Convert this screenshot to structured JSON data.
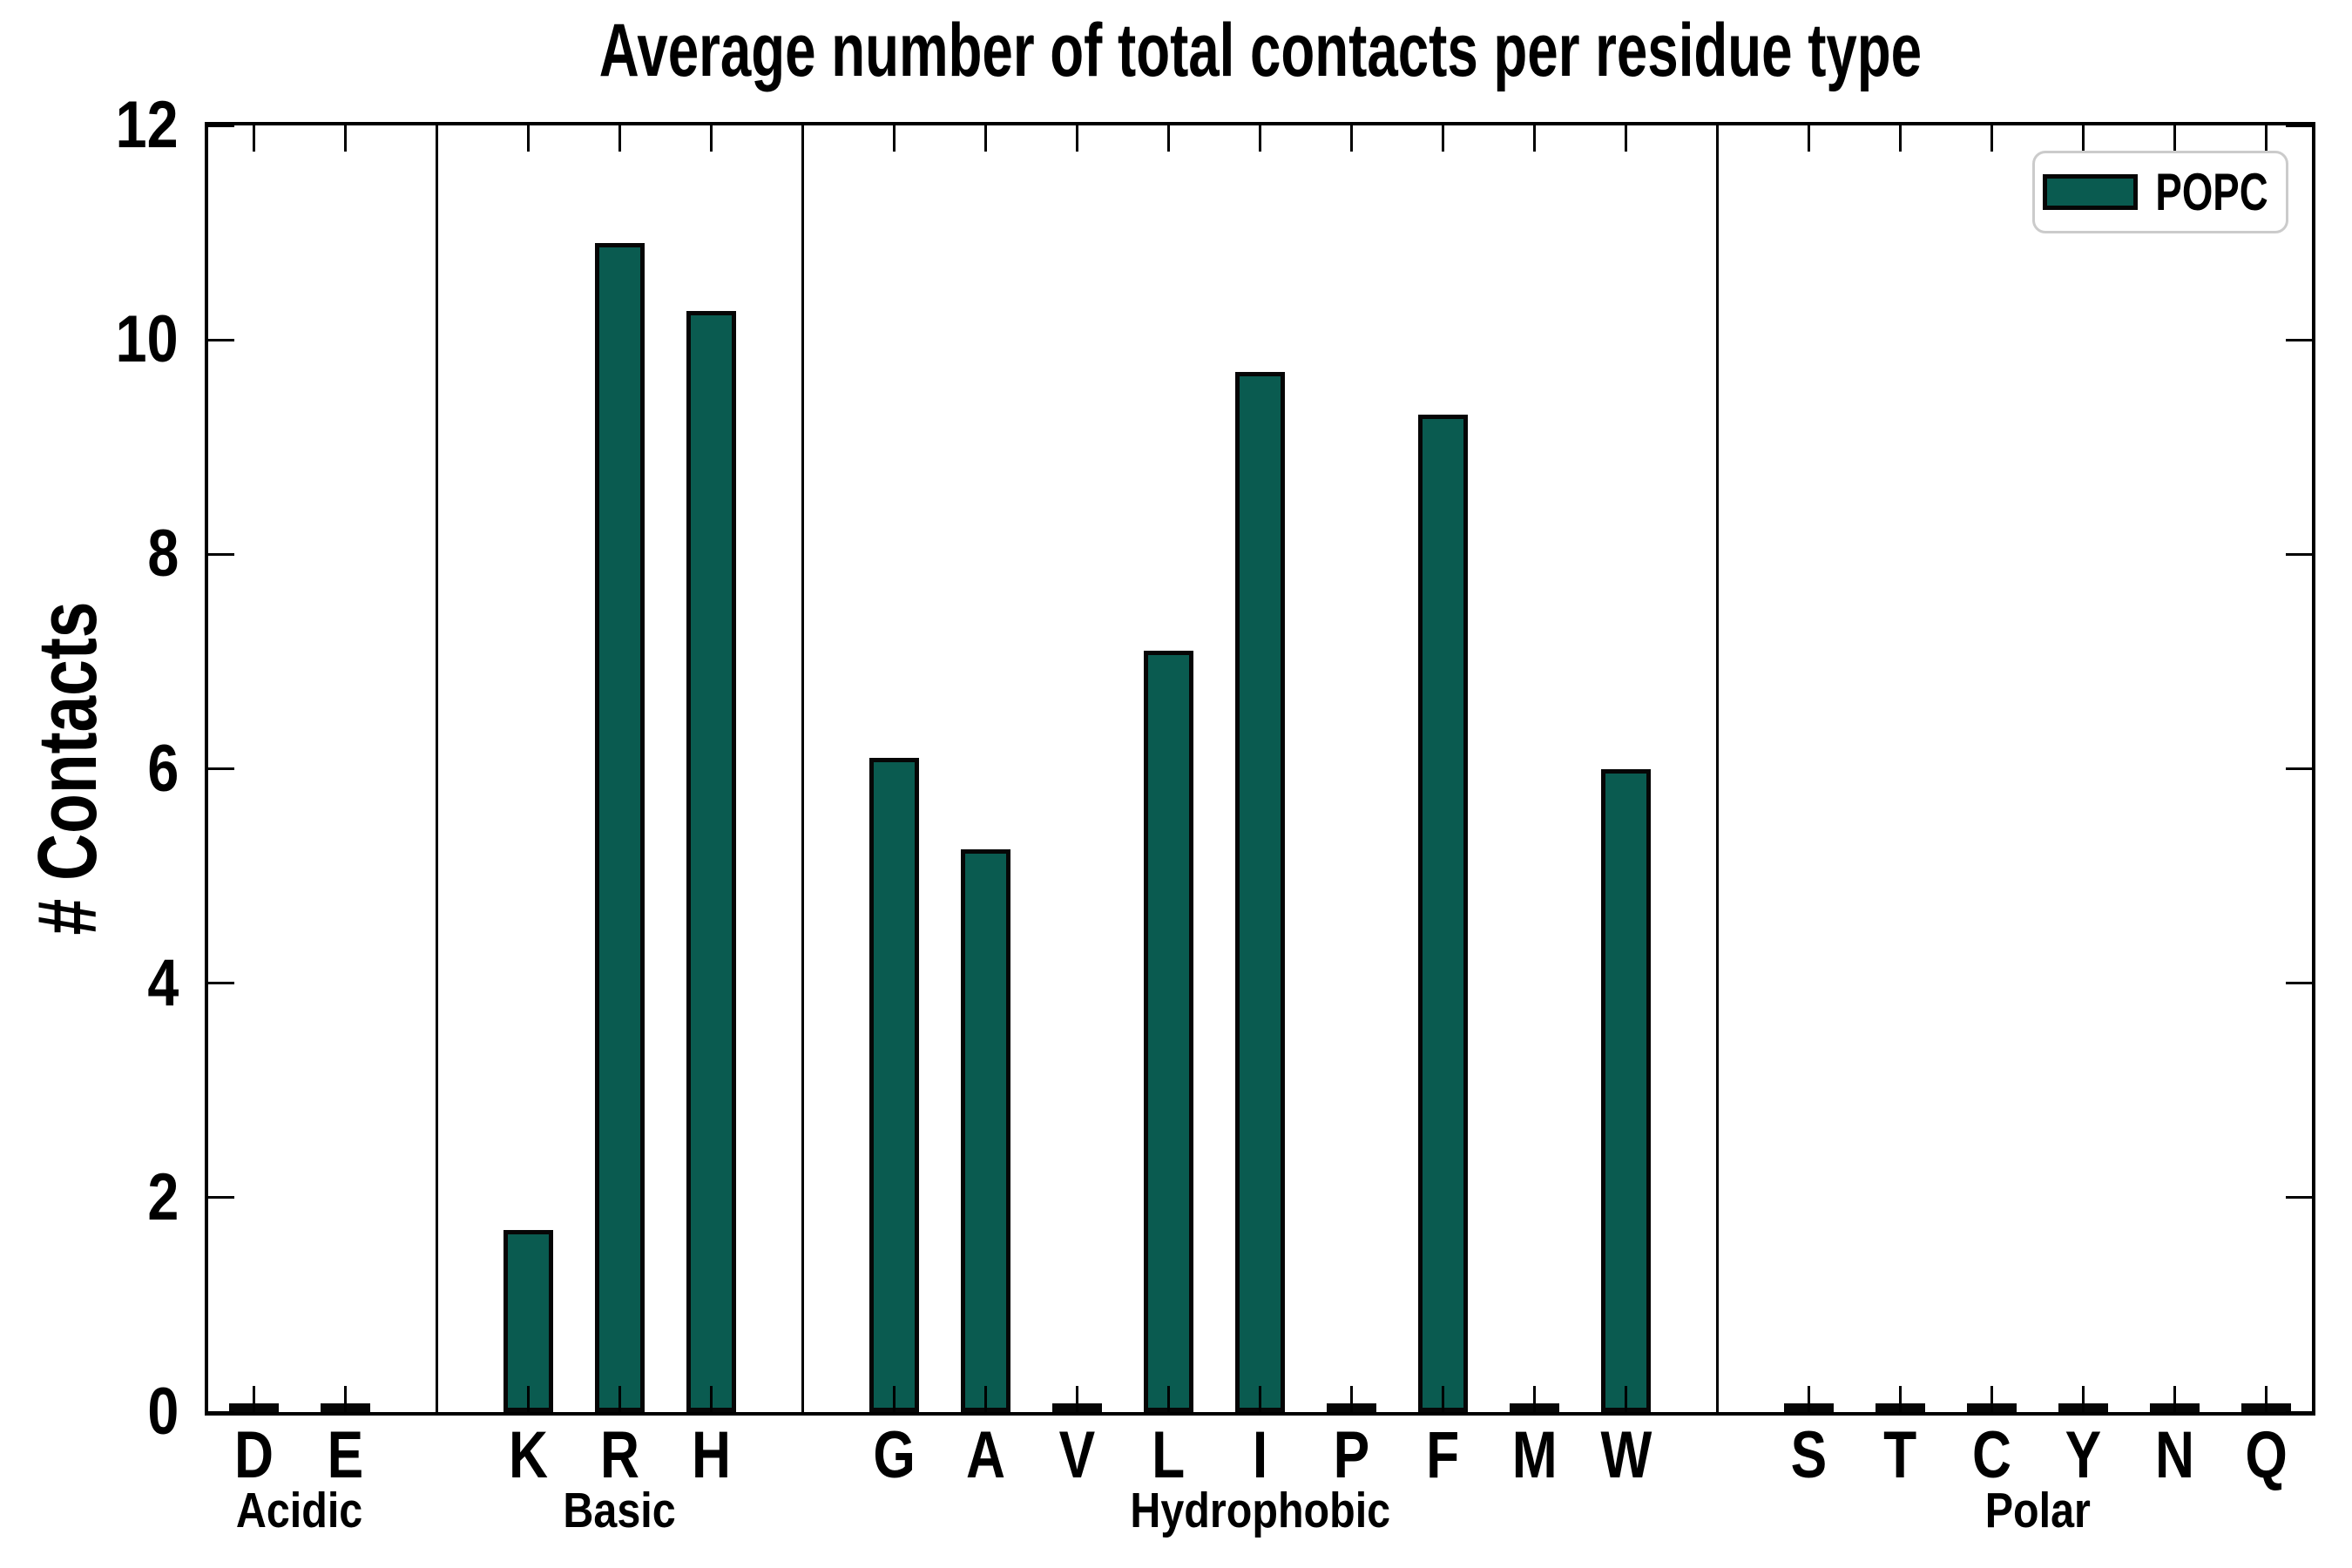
{
  "title": "Average number of total contacts per residue type",
  "ylabel": "# Contacts",
  "legend": {
    "label": "POPC"
  },
  "colors": {
    "bar_fill": "#0a5b50",
    "bar_edge": "#060606",
    "axis": "#000000",
    "legend_border": "#cbcbcb",
    "background": "#ffffff"
  },
  "y_axis": {
    "min": 0,
    "max": 12,
    "tick_step": 2,
    "tick_labels": [
      "0",
      "2",
      "4",
      "6",
      "8",
      "10",
      "12"
    ]
  },
  "chart_data": {
    "type": "bar",
    "title": "Average number of total contacts per residue type",
    "xlabel": "",
    "ylabel": "# Contacts",
    "ylim": [
      0,
      12
    ],
    "grid": false,
    "legend_position": "upper right",
    "series_name": "POPC",
    "group_separators": true,
    "groups": [
      {
        "label": "Acidic",
        "categories": [
          "D",
          "E"
        ],
        "values": [
          0.03,
          0.03
        ]
      },
      {
        "label": "Basic",
        "categories": [
          "K",
          "R",
          "H"
        ],
        "values": [
          1.7,
          10.9,
          10.27
        ]
      },
      {
        "label": "Hydrophobic",
        "categories": [
          "G",
          "A",
          "V",
          "L",
          "I",
          "P",
          "F",
          "M",
          "W"
        ],
        "values": [
          6.1,
          5.25,
          0.03,
          7.1,
          9.7,
          0.03,
          9.3,
          0.03,
          6.0
        ]
      },
      {
        "label": "Polar",
        "categories": [
          "S",
          "T",
          "C",
          "Y",
          "N",
          "Q"
        ],
        "values": [
          0.03,
          0.03,
          0.03,
          0.03,
          0.03,
          0.03
        ]
      }
    ]
  }
}
